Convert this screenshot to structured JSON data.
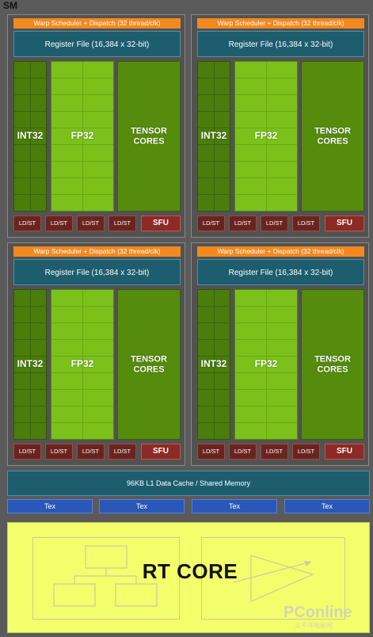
{
  "sm_label": "SM",
  "quadrants": [
    {
      "warp": "Warp Scheduler + Dispatch (32 thread/clk)",
      "register_file": "Register File (16,384 x 32-bit)",
      "int32": "INT32",
      "fp32": "FP32",
      "tensor_line1": "TENSOR",
      "tensor_line2": "CORES",
      "ldst": [
        "LD/ST",
        "LD/ST",
        "LD/ST",
        "LD/ST"
      ],
      "sfu": "SFU"
    },
    {
      "warp": "Warp Scheduler + Dispatch (32 thread/clk)",
      "register_file": "Register File (16,384 x 32-bit)",
      "int32": "INT32",
      "fp32": "FP32",
      "tensor_line1": "TENSOR",
      "tensor_line2": "CORES",
      "ldst": [
        "LD/ST",
        "LD/ST",
        "LD/ST",
        "LD/ST"
      ],
      "sfu": "SFU"
    },
    {
      "warp": "Warp Scheduler + Dispatch (32 thread/clk)",
      "register_file": "Register File (16,384 x 32-bit)",
      "int32": "INT32",
      "fp32": "FP32",
      "tensor_line1": "TENSOR",
      "tensor_line2": "CORES",
      "ldst": [
        "LD/ST",
        "LD/ST",
        "LD/ST",
        "LD/ST"
      ],
      "sfu": "SFU"
    },
    {
      "warp": "Warp Scheduler + Dispatch (32 thread/clk)",
      "register_file": "Register File (16,384 x 32-bit)",
      "int32": "INT32",
      "fp32": "FP32",
      "tensor_line1": "TENSOR",
      "tensor_line2": "CORES",
      "ldst": [
        "LD/ST",
        "LD/ST",
        "LD/ST",
        "LD/ST"
      ],
      "sfu": "SFU"
    }
  ],
  "l1_cache": "96KB L1 Data Cache / Shared Memory",
  "tex_units": [
    "Tex",
    "Tex",
    "Tex",
    "Tex"
  ],
  "rt_core": "RT CORE",
  "watermark": "PConline",
  "watermark_sub": "太平洋电脑网",
  "colors": {
    "warp": "#f2891f",
    "register_file": "#1d5d6e",
    "int32": "#4a7d0c",
    "fp32": "#7cc01c",
    "tensor": "#558c0e",
    "ldst": "#6a2420",
    "sfu": "#8c2a25",
    "tex": "#2a57b8",
    "rt_core": "#f4ff6c"
  }
}
